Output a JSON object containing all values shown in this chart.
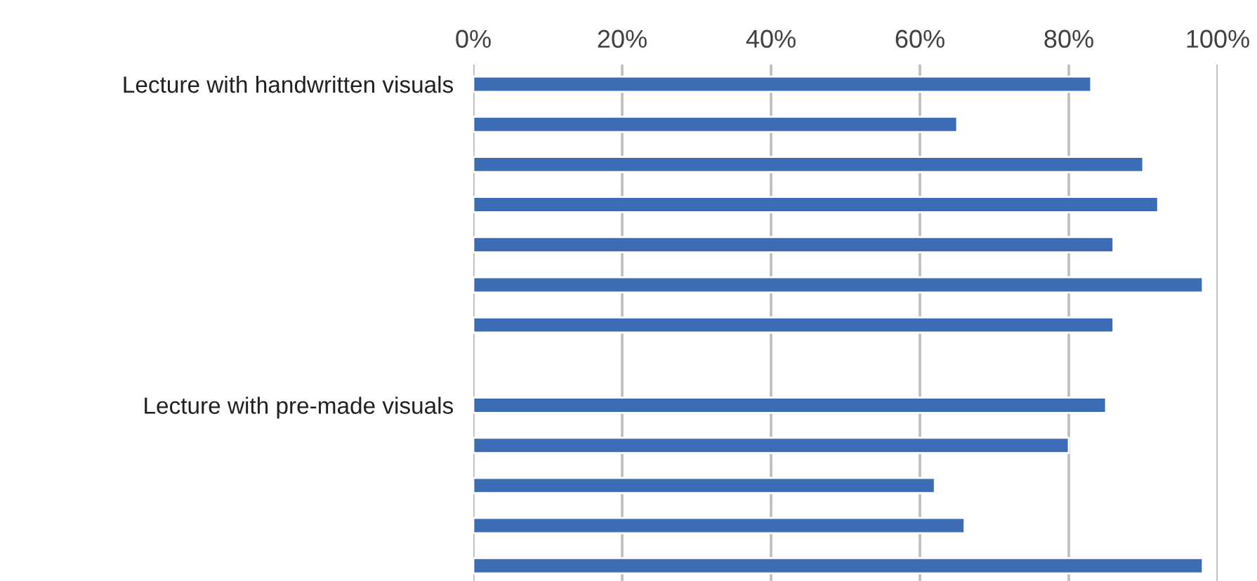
{
  "chart_data": {
    "type": "bar",
    "orientation": "horizontal",
    "categories": [
      "Lecture with handwritten visuals",
      null,
      null,
      null,
      null,
      null,
      null,
      null,
      "Lecture with pre-made visuals",
      null,
      null,
      null,
      null
    ],
    "values": [
      83,
      65,
      90,
      92,
      86,
      98,
      86,
      null,
      85,
      80,
      62,
      66,
      98
    ],
    "color": "#3c6db4",
    "xlim": [
      0,
      100
    ],
    "xticks": [
      {
        "value": 0,
        "label": "0%"
      },
      {
        "value": 20,
        "label": "20%"
      },
      {
        "value": 40,
        "label": "40%"
      },
      {
        "value": 60,
        "label": "60%"
      },
      {
        "value": 80,
        "label": "80%"
      },
      {
        "value": 100,
        "label": "100%"
      }
    ],
    "grid": "x"
  }
}
